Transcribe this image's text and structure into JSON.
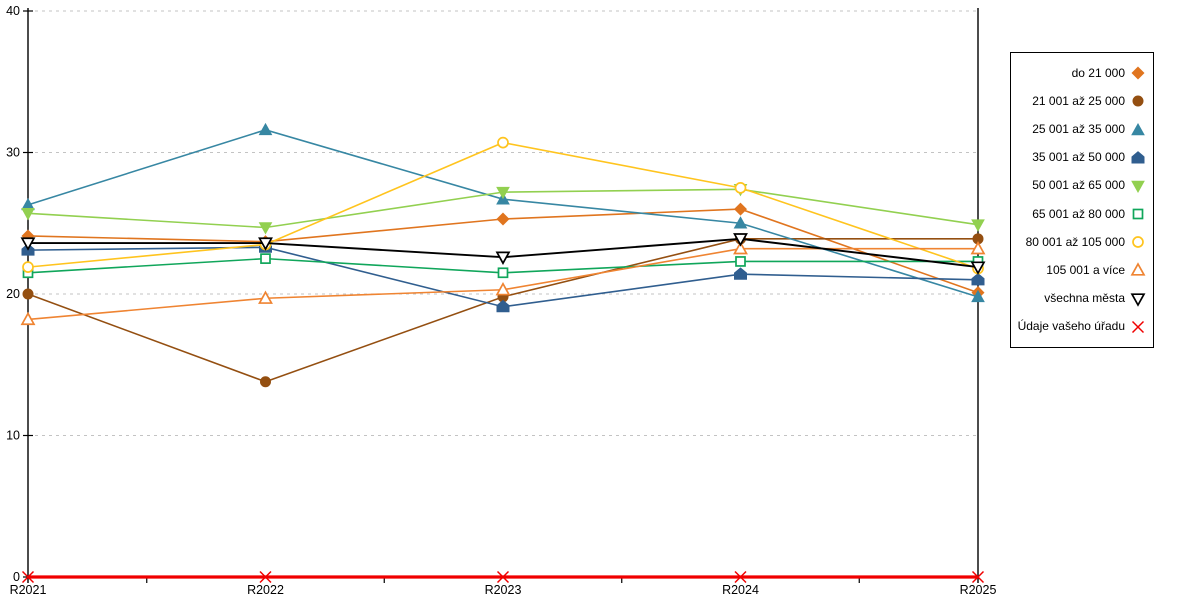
{
  "chart_data": {
    "type": "line",
    "title": "",
    "xlabel": "",
    "ylabel": "",
    "x_categories": [
      "R2021",
      "R2022",
      "R2023",
      "R2024",
      "R2025"
    ],
    "ylim": [
      0,
      40
    ],
    "yticks": [
      0,
      10,
      20,
      30,
      40
    ],
    "grid": "horizontal-dashed",
    "gridline_color": "#c3c3c3",
    "axis_color": "#000000",
    "legend_position": "right",
    "series": [
      {
        "name": "do 21 000",
        "color": "#E0751F",
        "marker": "diamond",
        "filled": true,
        "line_width": 1.6,
        "values": [
          24.1,
          23.7,
          25.3,
          26.0,
          20.1
        ]
      },
      {
        "name": "21 001 až 25 000",
        "color": "#944F11",
        "marker": "circle",
        "filled": true,
        "line_width": 1.6,
        "values": [
          20.0,
          13.8,
          19.8,
          23.9,
          23.9
        ]
      },
      {
        "name": "25 001 až 35 000",
        "color": "#3787A3",
        "marker": "triangle-up",
        "filled": true,
        "line_width": 1.6,
        "values": [
          26.3,
          31.6,
          26.7,
          25.0,
          19.8
        ]
      },
      {
        "name": "35 001 až 50 000",
        "color": "#305E8F",
        "marker": "pentagon",
        "filled": true,
        "line_width": 1.6,
        "values": [
          23.1,
          23.3,
          19.1,
          21.4,
          21.0
        ]
      },
      {
        "name": "50 001 až 65 000",
        "color": "#92D050",
        "marker": "triangle-down",
        "filled": true,
        "line_width": 1.6,
        "values": [
          25.7,
          24.7,
          27.2,
          27.4,
          24.9
        ]
      },
      {
        "name": "65 001 až 80 000",
        "color": "#10A65B",
        "marker": "square",
        "filled": false,
        "line_width": 1.6,
        "values": [
          21.5,
          22.5,
          21.5,
          22.3,
          22.3
        ]
      },
      {
        "name": "80 001 až 105 000",
        "color": "#FFC41E",
        "marker": "circle",
        "filled": false,
        "line_width": 1.6,
        "values": [
          21.9,
          23.5,
          30.7,
          27.5,
          21.8
        ]
      },
      {
        "name": "105 001 a více",
        "color": "#EF8432",
        "marker": "triangle-up",
        "filled": false,
        "line_width": 1.6,
        "values": [
          18.2,
          19.7,
          20.3,
          23.2,
          23.2
        ]
      },
      {
        "name": "všechna města",
        "color": "#000000",
        "marker": "triangle-down",
        "filled": false,
        "line_width": 1.9,
        "values": [
          23.6,
          23.6,
          22.6,
          23.9,
          21.9
        ]
      },
      {
        "name": "Údaje vašeho úřadu",
        "color": "#F00000",
        "marker": "x",
        "filled": false,
        "line_width": 3.2,
        "values": [
          0,
          0,
          0,
          0,
          0
        ]
      }
    ]
  }
}
